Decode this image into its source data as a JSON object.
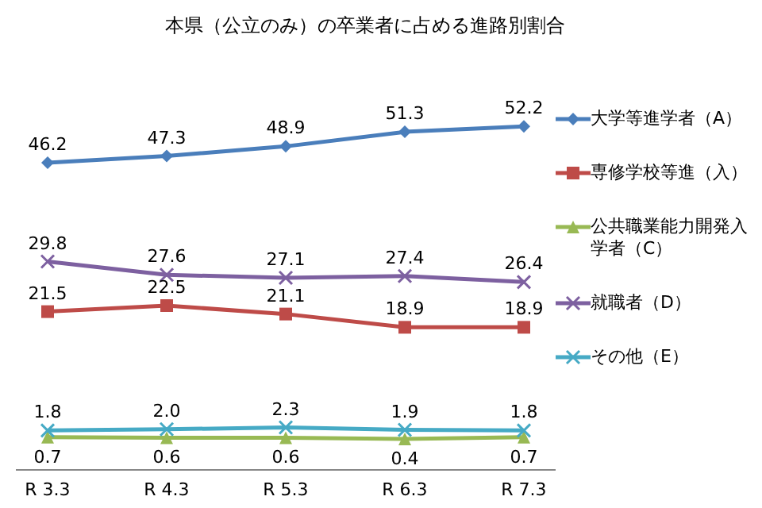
{
  "chart_data": {
    "type": "line",
    "title": "本県（公立のみ）の卒業者に占める進路別割合",
    "categories": [
      "R 3.3",
      "R 4.3",
      "R 5.3",
      "R 6.3",
      "R 7.3"
    ],
    "tick_labels": "x",
    "legend": "right",
    "grid": false,
    "line_style": "solid",
    "series": [
      {
        "name": "大学等進学者（A）",
        "color": "#4a7ebb",
        "marker": "diamond",
        "values": [
          46.2,
          47.3,
          48.9,
          51.3,
          52.2
        ],
        "value_labels": [
          "46.2",
          "47.3",
          "48.9",
          "51.3",
          "52.2"
        ]
      },
      {
        "name": "専修学校等進（入）",
        "color": "#be4b48",
        "marker": "square",
        "values": [
          21.5,
          22.5,
          21.1,
          18.9,
          18.9
        ],
        "value_labels": [
          "21.5",
          "22.5",
          "21.1",
          "18.9",
          "18.9"
        ]
      },
      {
        "name": "公共職業能力開発入学者（C）",
        "color": "#98b954",
        "marker": "triangle",
        "values": [
          0.7,
          0.6,
          0.6,
          0.4,
          0.7
        ],
        "value_labels": [
          "0.7",
          "0.6",
          "0.6",
          "0.4",
          "0.7"
        ]
      },
      {
        "name": "就職者（D）",
        "color": "#7d60a0",
        "marker": "cross",
        "values": [
          29.8,
          27.6,
          27.1,
          27.4,
          26.4
        ],
        "value_labels": [
          "29.8",
          "27.6",
          "27.1",
          "27.4",
          "26.4"
        ]
      },
      {
        "name": "その他（E）",
        "color": "#46aac5",
        "marker": "cross",
        "values": [
          1.8,
          2.0,
          2.3,
          1.9,
          1.8
        ],
        "value_labels": [
          "1.8",
          "2.0",
          "2.3",
          "1.9",
          "1.8"
        ]
      }
    ]
  }
}
